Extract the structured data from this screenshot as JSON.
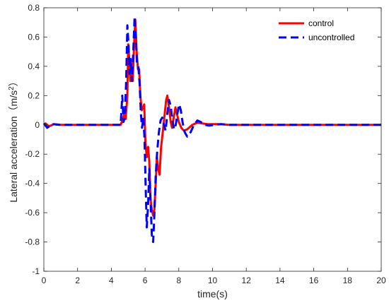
{
  "chart_data": {
    "type": "line",
    "xlabel": "time(s)",
    "ylabel": "Lateral acceleration（m/s",
    "ylabel_sup": "2",
    "ylabel_close": "）",
    "xlim": [
      0,
      20
    ],
    "ylim": [
      -1,
      0.8
    ],
    "xticks": [
      0,
      2,
      4,
      6,
      8,
      10,
      12,
      14,
      16,
      18,
      20
    ],
    "yticks": [
      -1,
      -0.8,
      -0.6,
      -0.4,
      -0.2,
      0,
      0.2,
      0.4,
      0.6,
      0.8
    ],
    "ytick_labels": [
      "-1",
      "-0.8",
      "-0.6",
      "-0.4",
      "-0.2",
      "0",
      "0.2",
      "0.4",
      "0.6",
      "0.8"
    ],
    "grid": false,
    "legend_position": "top-right",
    "series": [
      {
        "name": "control",
        "color": "#ff0000",
        "style": "solid",
        "points": [
          [
            0,
            0
          ],
          [
            0.1,
            0.01
          ],
          [
            0.3,
            -0.01
          ],
          [
            0.6,
            0.005
          ],
          [
            1,
            0
          ],
          [
            2,
            0
          ],
          [
            3,
            0
          ],
          [
            4,
            0
          ],
          [
            4.55,
            0
          ],
          [
            4.65,
            0.03
          ],
          [
            4.75,
            0.07
          ],
          [
            4.85,
            0.04
          ],
          [
            4.95,
            0.2
          ],
          [
            5.0,
            0.55
          ],
          [
            5.05,
            0.47
          ],
          [
            5.12,
            0.3
          ],
          [
            5.2,
            0.42
          ],
          [
            5.27,
            0.3
          ],
          [
            5.35,
            0.55
          ],
          [
            5.42,
            0.72
          ],
          [
            5.5,
            0.5
          ],
          [
            5.58,
            0.38
          ],
          [
            5.65,
            0.38
          ],
          [
            5.72,
            0.2
          ],
          [
            5.8,
            0.1
          ],
          [
            5.88,
            0.12
          ],
          [
            5.95,
            0.14
          ],
          [
            6.02,
            -0.12
          ],
          [
            6.1,
            -0.22
          ],
          [
            6.18,
            -0.15
          ],
          [
            6.25,
            -0.25
          ],
          [
            6.32,
            -0.5
          ],
          [
            6.4,
            -0.58
          ],
          [
            6.48,
            -0.62
          ],
          [
            6.55,
            -0.58
          ],
          [
            6.63,
            -0.4
          ],
          [
            6.7,
            -0.22
          ],
          [
            6.78,
            -0.3
          ],
          [
            6.86,
            -0.34
          ],
          [
            6.95,
            -0.15
          ],
          [
            7.05,
            -0.05
          ],
          [
            7.15,
            0.06
          ],
          [
            7.25,
            0.17
          ],
          [
            7.32,
            0.2
          ],
          [
            7.42,
            0.12
          ],
          [
            7.52,
            0.02
          ],
          [
            7.6,
            -0.02
          ],
          [
            7.7,
            0.05
          ],
          [
            7.8,
            0.12
          ],
          [
            7.9,
            0.07
          ],
          [
            8.0,
            0.02
          ],
          [
            8.15,
            -0.02
          ],
          [
            8.3,
            -0.04
          ],
          [
            8.5,
            -0.03
          ],
          [
            8.8,
            0
          ],
          [
            9.1,
            0.015
          ],
          [
            9.4,
            0.01
          ],
          [
            9.7,
            0.005
          ],
          [
            10.1,
            0.005
          ],
          [
            10.5,
            0.005
          ],
          [
            11,
            0
          ],
          [
            12,
            0
          ],
          [
            14,
            0
          ],
          [
            16,
            0
          ],
          [
            18,
            0
          ],
          [
            20,
            0
          ]
        ]
      },
      {
        "name": "uncontrolled",
        "color": "#0000ff",
        "style": "dashed",
        "points": [
          [
            0,
            0.01
          ],
          [
            0.2,
            -0.02
          ],
          [
            0.5,
            0.005
          ],
          [
            1,
            0
          ],
          [
            2,
            0
          ],
          [
            3,
            0
          ],
          [
            4,
            0
          ],
          [
            4.55,
            0
          ],
          [
            4.65,
            0.2
          ],
          [
            4.72,
            0.02
          ],
          [
            4.8,
            0.05
          ],
          [
            4.88,
            0.3
          ],
          [
            4.95,
            0.68
          ],
          [
            5.02,
            0.55
          ],
          [
            5.08,
            0.35
          ],
          [
            5.15,
            0.45
          ],
          [
            5.22,
            0.3
          ],
          [
            5.3,
            0.5
          ],
          [
            5.38,
            0.74
          ],
          [
            5.45,
            0.6
          ],
          [
            5.52,
            0.42
          ],
          [
            5.6,
            0.4
          ],
          [
            5.68,
            0.28
          ],
          [
            5.75,
            0.08
          ],
          [
            5.82,
            -0.02
          ],
          [
            5.9,
            0.05
          ],
          [
            5.97,
            -0.1
          ],
          [
            6.03,
            -0.4
          ],
          [
            6.1,
            -0.7
          ],
          [
            6.18,
            -0.55
          ],
          [
            6.25,
            -0.3
          ],
          [
            6.32,
            -0.5
          ],
          [
            6.4,
            -0.75
          ],
          [
            6.48,
            -0.8
          ],
          [
            6.55,
            -0.62
          ],
          [
            6.63,
            -0.35
          ],
          [
            6.72,
            -0.18
          ],
          [
            6.82,
            -0.05
          ],
          [
            6.92,
            0.03
          ],
          [
            7.02,
            0.05
          ],
          [
            7.12,
            0.0
          ],
          [
            7.22,
            -0.04
          ],
          [
            7.32,
            0.08
          ],
          [
            7.42,
            0.17
          ],
          [
            7.52,
            0.13
          ],
          [
            7.62,
            0.03
          ],
          [
            7.72,
            -0.03
          ],
          [
            7.82,
            0.0
          ],
          [
            7.92,
            0.08
          ],
          [
            8.02,
            0.14
          ],
          [
            8.12,
            0.1
          ],
          [
            8.22,
            0.02
          ],
          [
            8.35,
            -0.05
          ],
          [
            8.5,
            -0.08
          ],
          [
            8.7,
            -0.05
          ],
          [
            8.9,
            0.0
          ],
          [
            9.1,
            0.03
          ],
          [
            9.3,
            0.02
          ],
          [
            9.55,
            0.0
          ],
          [
            9.8,
            -0.005
          ],
          [
            10.1,
            0
          ],
          [
            10.5,
            0.005
          ],
          [
            11,
            0
          ],
          [
            12,
            0
          ],
          [
            14,
            0
          ],
          [
            16,
            0
          ],
          [
            18,
            0
          ],
          [
            20,
            0
          ]
        ]
      }
    ]
  }
}
